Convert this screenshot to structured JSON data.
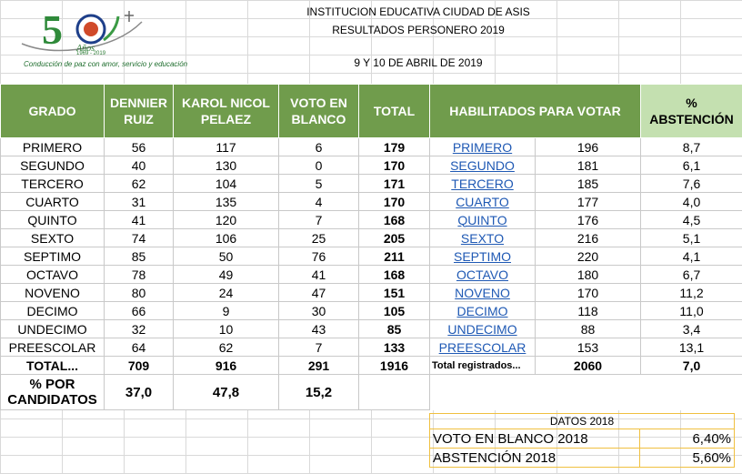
{
  "logo": {
    "emblem_text": "50",
    "subtitle": "Años",
    "years": "1969 - 2019",
    "motto": "Conducción de paz con amor, servicio y educación"
  },
  "header": {
    "line1": "INSTITUCION EDUCATIVA CIUDAD DE ASIS",
    "line2": "RESULTADOS PERSONERO 2019",
    "line3": "9 Y 10 DE ABRIL DE 2019"
  },
  "columns": {
    "grado": "GRADO",
    "c1a": "DENNIER",
    "c1b": "RUIZ",
    "c2a": "KAROL NICOL",
    "c2b": "PELAEZ",
    "c3a": "VOTO EN",
    "c3b": "BLANCO",
    "total": "TOTAL",
    "habilitados": "HABILITADOS PARA VOTAR",
    "abs_a": "%",
    "abs_b": "ABSTENCIÓN"
  },
  "rows": [
    {
      "grado": "PRIMERO",
      "dennier": "56",
      "karol": "117",
      "blanco": "6",
      "total": "179",
      "link": "PRIMERO",
      "habil": "196",
      "abs": "8,7"
    },
    {
      "grado": "SEGUNDO",
      "dennier": "40",
      "karol": "130",
      "blanco": "0",
      "total": "170",
      "link": "SEGUNDO",
      "habil": "181",
      "abs": "6,1"
    },
    {
      "grado": "TERCERO",
      "dennier": "62",
      "karol": "104",
      "blanco": "5",
      "total": "171",
      "link": "TERCERO",
      "habil": "185",
      "abs": "7,6"
    },
    {
      "grado": "CUARTO",
      "dennier": "31",
      "karol": "135",
      "blanco": "4",
      "total": "170",
      "link": "CUARTO",
      "habil": "177",
      "abs": "4,0"
    },
    {
      "grado": "QUINTO",
      "dennier": "41",
      "karol": "120",
      "blanco": "7",
      "total": "168",
      "link": "QUINTO",
      "habil": "176",
      "abs": "4,5"
    },
    {
      "grado": "SEXTO",
      "dennier": "74",
      "karol": "106",
      "blanco": "25",
      "total": "205",
      "link": "SEXTO",
      "habil": "216",
      "abs": "5,1"
    },
    {
      "grado": "SEPTIMO",
      "dennier": "85",
      "karol": "50",
      "blanco": "76",
      "total": "211",
      "link": "SEPTIMO",
      "habil": "220",
      "abs": "4,1"
    },
    {
      "grado": "OCTAVO",
      "dennier": "78",
      "karol": "49",
      "blanco": "41",
      "total": "168",
      "link": "OCTAVO",
      "habil": "180",
      "abs": "6,7"
    },
    {
      "grado": "NOVENO",
      "dennier": "80",
      "karol": "24",
      "blanco": "47",
      "total": "151",
      "link": "NOVENO",
      "habil": "170",
      "abs": "11,2"
    },
    {
      "grado": "DECIMO",
      "dennier": "66",
      "karol": "9",
      "blanco": "30",
      "total": "105",
      "link": "DECIMO",
      "habil": "118",
      "abs": "11,0"
    },
    {
      "grado": "UNDECIMO",
      "dennier": "32",
      "karol": "10",
      "blanco": "43",
      "total": "85",
      "link": "UNDECIMO",
      "habil": "88",
      "abs": "3,4"
    },
    {
      "grado": "PREESCOLAR",
      "dennier": "64",
      "karol": "62",
      "blanco": "7",
      "total": "133",
      "link": "PREESCOLAR",
      "habil": "153",
      "abs": "13,1"
    }
  ],
  "totals": {
    "label": "TOTAL...",
    "dennier": "709",
    "karol": "916",
    "blanco": "291",
    "total": "1916",
    "registrados_label": "Total registrados...",
    "registrados": "2060",
    "abs": "7,0"
  },
  "percent": {
    "label_a": "% POR",
    "label_b": "CANDIDATOS",
    "dennier": "37,0",
    "karol": "47,8",
    "blanco": "15,2"
  },
  "datos": {
    "title": "DATOS 2018",
    "r1_label": "VOTO EN BLANCO 2018",
    "r1_value": "6,40%",
    "r2_label": "ABSTENCIÓN 2018",
    "r2_value": "5,60%"
  }
}
